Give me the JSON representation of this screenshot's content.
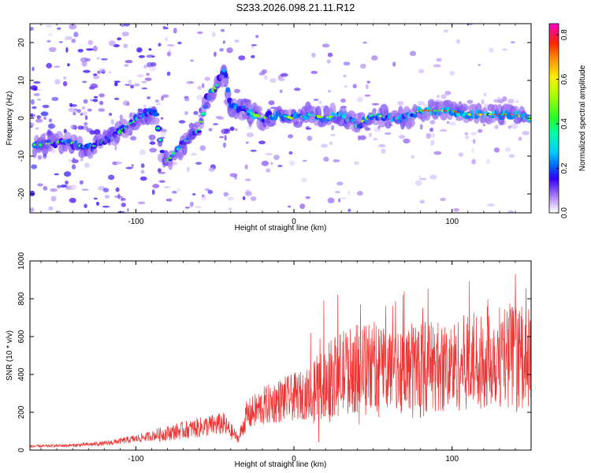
{
  "title": "S233.2026.098.21.11.R12",
  "chart_data": [
    {
      "type": "heatmap",
      "title": "S233.2026.098.21.11.R12",
      "xlabel": "Height of straight line (km)",
      "ylabel": "Frequency (Hz)",
      "xlim": [
        -167,
        150
      ],
      "ylim": [
        -25,
        25
      ],
      "xticks": [
        -100,
        0,
        100
      ],
      "xtick_labels": [
        "-100",
        "0",
        "100"
      ],
      "yticks": [
        -20,
        -10,
        0,
        10,
        20
      ],
      "ytick_labels": [
        "-20",
        "-10",
        "0",
        "10",
        "20"
      ],
      "colorbar": {
        "label": "Normalized spectral amplitude",
        "range": [
          0,
          0.85
        ],
        "ticks": [
          0.0,
          0.2,
          0.4,
          0.6,
          0.8
        ],
        "tick_labels": [
          "0.0",
          "0.2",
          "0.4",
          "0.6",
          "0.8"
        ]
      },
      "ridge": [
        {
          "x": -160,
          "y": -7
        },
        {
          "x": -145,
          "y": -6
        },
        {
          "x": -130,
          "y": -8
        },
        {
          "x": -115,
          "y": -5
        },
        {
          "x": -105,
          "y": -2
        },
        {
          "x": -95,
          "y": 1
        },
        {
          "x": -88,
          "y": 2
        },
        {
          "x": -82,
          "y": -12
        },
        {
          "x": -75,
          "y": -9
        },
        {
          "x": -68,
          "y": -6
        },
        {
          "x": -60,
          "y": -3
        },
        {
          "x": -55,
          "y": 5
        },
        {
          "x": -48,
          "y": 9
        },
        {
          "x": -44,
          "y": 13
        },
        {
          "x": -40,
          "y": 3
        },
        {
          "x": -30,
          "y": 2
        },
        {
          "x": -20,
          "y": 0
        },
        {
          "x": -10,
          "y": 1
        },
        {
          "x": 0,
          "y": 0
        },
        {
          "x": 10,
          "y": 1
        },
        {
          "x": 20,
          "y": 0
        },
        {
          "x": 30,
          "y": 1
        },
        {
          "x": 40,
          "y": -2
        },
        {
          "x": 50,
          "y": 1
        },
        {
          "x": 60,
          "y": 0
        },
        {
          "x": 70,
          "y": 0
        },
        {
          "x": 80,
          "y": 2
        },
        {
          "x": 90,
          "y": 2
        },
        {
          "x": 100,
          "y": 2
        },
        {
          "x": 110,
          "y": 1
        },
        {
          "x": 120,
          "y": 1
        },
        {
          "x": 130,
          "y": 1
        },
        {
          "x": 140,
          "y": 1
        },
        {
          "x": 148,
          "y": 0
        }
      ]
    },
    {
      "type": "line",
      "xlabel": "Height of straight line (km)",
      "ylabel": "SNR (10 * v/v)",
      "xlim": [
        -167,
        150
      ],
      "ylim": [
        0,
        1000
      ],
      "xticks": [
        -100,
        0,
        100
      ],
      "xtick_labels": [
        "-100",
        "0",
        "100"
      ],
      "yticks": [
        0,
        200,
        400,
        600,
        800,
        1000
      ],
      "ytick_labels": [
        "0",
        "200",
        "400",
        "600",
        "800",
        "1000"
      ],
      "color": "#ee3333",
      "envelope": [
        {
          "x": -167,
          "y": 20
        },
        {
          "x": -140,
          "y": 25
        },
        {
          "x": -120,
          "y": 35
        },
        {
          "x": -100,
          "y": 60
        },
        {
          "x": -80,
          "y": 90
        },
        {
          "x": -60,
          "y": 120
        },
        {
          "x": -45,
          "y": 140
        },
        {
          "x": -35,
          "y": 60
        },
        {
          "x": -30,
          "y": 180
        },
        {
          "x": -20,
          "y": 230
        },
        {
          "x": -10,
          "y": 260
        },
        {
          "x": 0,
          "y": 280
        },
        {
          "x": 10,
          "y": 300
        },
        {
          "x": 20,
          "y": 360
        },
        {
          "x": 30,
          "y": 410
        },
        {
          "x": 40,
          "y": 430
        },
        {
          "x": 50,
          "y": 440
        },
        {
          "x": 60,
          "y": 440
        },
        {
          "x": 70,
          "y": 430
        },
        {
          "x": 80,
          "y": 450
        },
        {
          "x": 90,
          "y": 440
        },
        {
          "x": 100,
          "y": 440
        },
        {
          "x": 110,
          "y": 470
        },
        {
          "x": 120,
          "y": 490
        },
        {
          "x": 130,
          "y": 500
        },
        {
          "x": 140,
          "y": 500
        },
        {
          "x": 150,
          "y": 480
        }
      ]
    }
  ],
  "colors": {
    "line": "#ee3333",
    "frame": "#000000"
  }
}
